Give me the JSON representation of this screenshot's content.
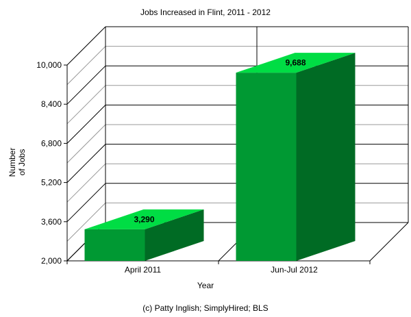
{
  "chart_data": {
    "type": "bar",
    "title": "Jobs Increased in Flint, 2011 - 2012",
    "xlabel": "Year",
    "ylabel": [
      "Number",
      "of Jobs"
    ],
    "categories": [
      "April 2011",
      "Jun-Jul 2012"
    ],
    "values": [
      3290,
      9688
    ],
    "value_labels": [
      "3,290",
      "9,688"
    ],
    "ylim": [
      2000,
      10000
    ],
    "yticks": [
      2000,
      3600,
      5200,
      6800,
      8400,
      10000
    ],
    "ytick_labels": [
      "2,000",
      "3,600",
      "5,200",
      "6,800",
      "8,400",
      "10,000"
    ],
    "grid": true,
    "three_d": true,
    "source": "(c) Patty Inglish; SimplyHired; BLS",
    "colors": {
      "front": "#009933",
      "side": "#006b24",
      "top": "#00dd44"
    }
  }
}
